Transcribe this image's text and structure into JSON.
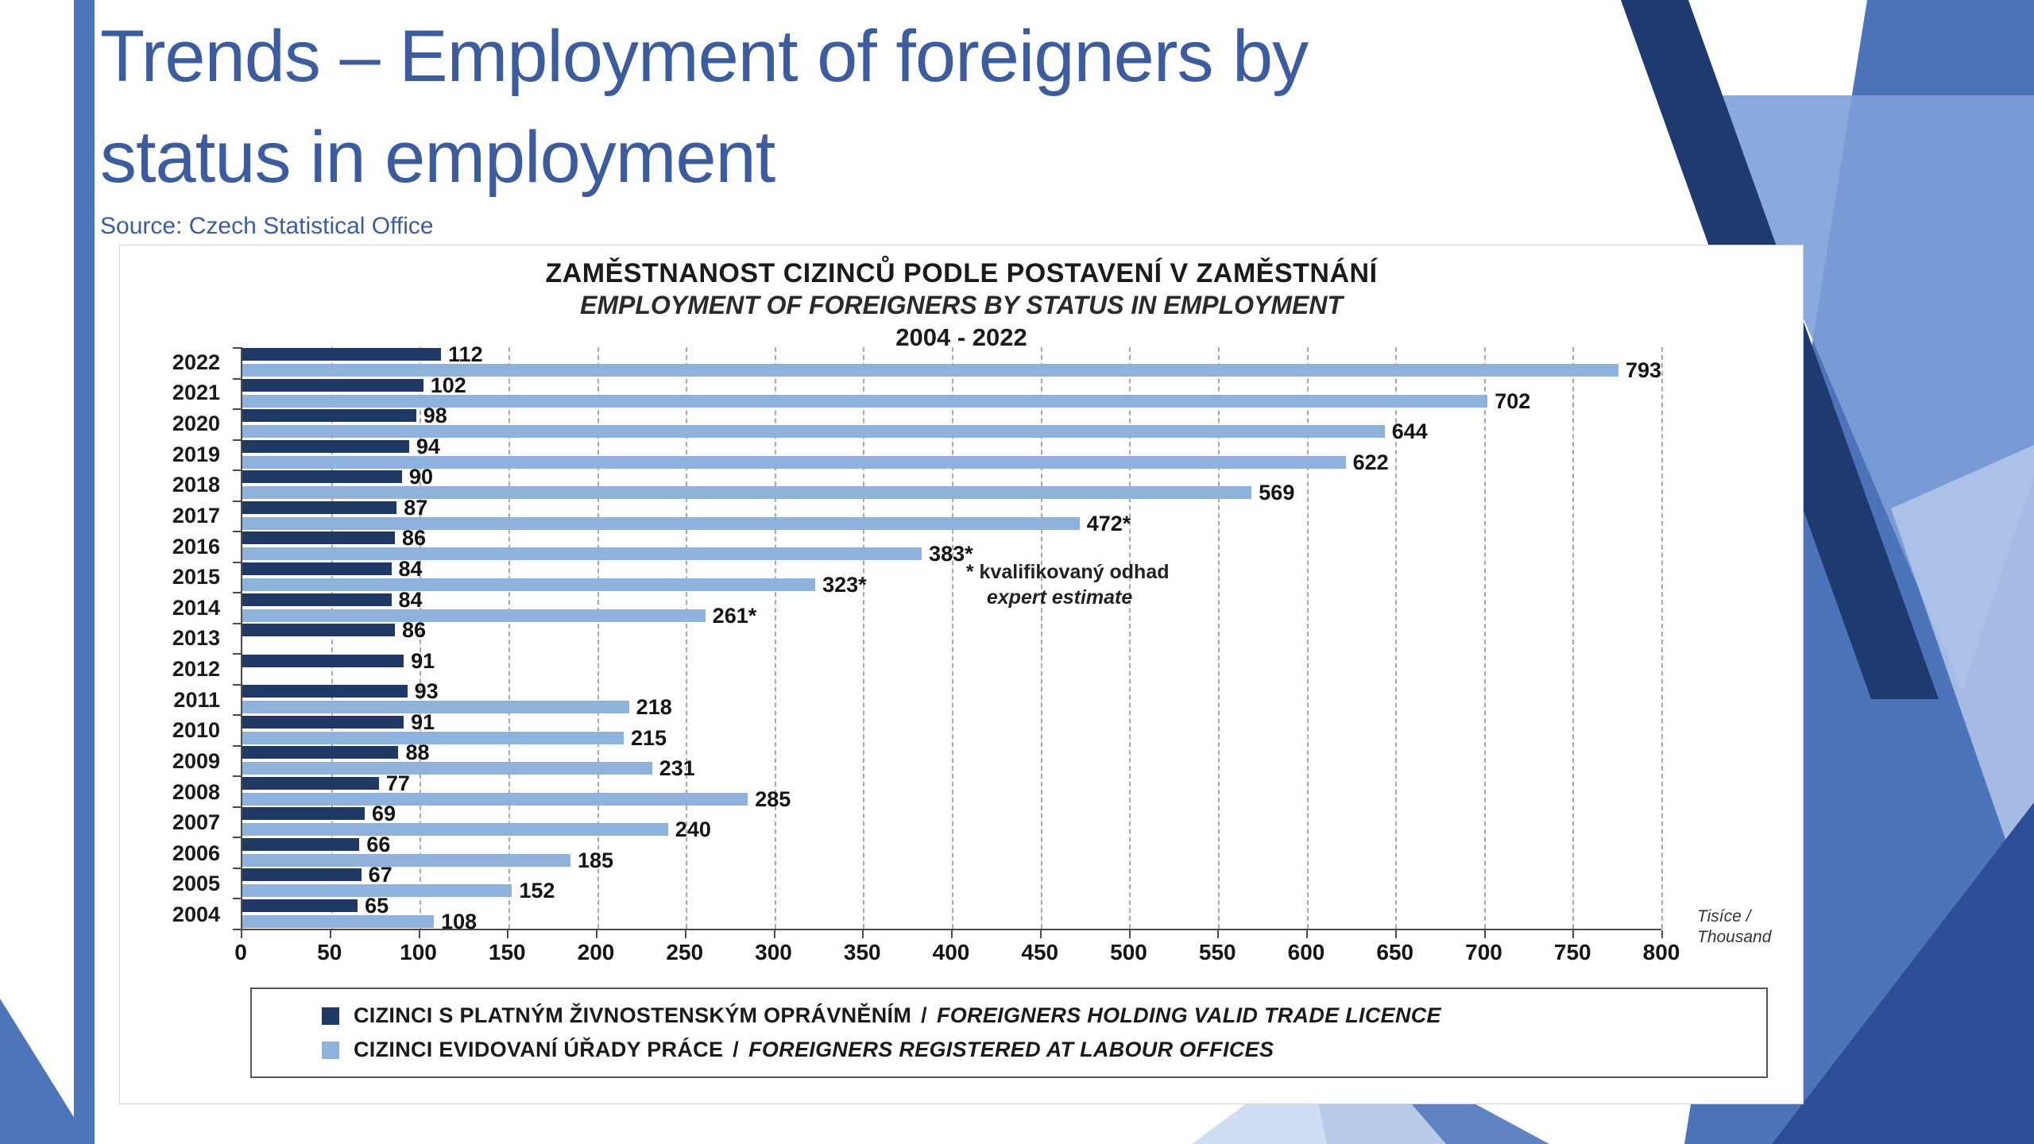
{
  "slide": {
    "title_lines": [
      "Trends – Employment of foreigners by",
      "status in employment"
    ],
    "source": "Source: Czech Statistical Office"
  },
  "colors": {
    "accent_blue": "#3D5C9E",
    "decoration_blue": "#4E74B9",
    "dark_series": "#1F3864",
    "light_series": "#8FB2DC"
  },
  "chart_data": {
    "type": "bar",
    "orientation": "horizontal",
    "titles": {
      "cs": "ZAMĚSTNANOST CIZINCŮ PODLE POSTAVENÍ V ZAMĚSTNÁNÍ",
      "en": "EMPLOYMENT OF FOREIGNERS BY STATUS IN EMPLOYMENT",
      "period": "2004 - 2022"
    },
    "axis": {
      "min": 0,
      "max": 800,
      "step": 50,
      "unit_line1": "Tisíce /",
      "unit_line2": "Thousand"
    },
    "grid": "vertical-dashed",
    "legend_position": "bottom",
    "categories": [
      "2022",
      "2021",
      "2020",
      "2019",
      "2018",
      "2017",
      "2016",
      "2015",
      "2014",
      "2013",
      "2012",
      "2011",
      "2010",
      "2009",
      "2008",
      "2007",
      "2006",
      "2005",
      "2004"
    ],
    "series": [
      {
        "name_cs": "CIZINCI S PLATNÝM ŽIVNOSTENSKÝM OPRÁVNĚNÍM",
        "name_en": "FOREIGNERS HOLDING VALID TRADE LICENCE",
        "color": "#1F3864",
        "values": [
          112,
          102,
          98,
          94,
          90,
          87,
          86,
          84,
          84,
          86,
          91,
          93,
          91,
          88,
          77,
          69,
          66,
          67,
          65
        ],
        "labels": [
          "112",
          "102",
          "98",
          "94",
          "90",
          "87",
          "86",
          "84",
          "84",
          "86",
          "91",
          "93",
          "91",
          "88",
          "77",
          "69",
          "66",
          "67",
          "65"
        ]
      },
      {
        "name_cs": "CIZINCI EVIDOVANÍ ÚŘADY PRÁCE",
        "name_en": "FOREIGNERS REGISTERED AT LABOUR OFFICES",
        "color": "#8FB2DC",
        "values": [
          793,
          702,
          644,
          622,
          569,
          472,
          383,
          323,
          261,
          null,
          null,
          218,
          215,
          231,
          285,
          240,
          185,
          152,
          108
        ],
        "labels": [
          "793",
          "702",
          "644",
          "622",
          "569",
          "472*",
          "383*",
          "323*",
          "261*",
          null,
          null,
          "218",
          "215",
          "231",
          "285",
          "240",
          "185",
          "152",
          "108"
        ]
      }
    ],
    "annotation": {
      "line1": "* kvalifikovaný odhad",
      "line2": "expert estimate"
    },
    "legend": {
      "entries": [
        {
          "label_cs": "CIZINCI S PLATNÝM ŽIVNOSTENSKÝM OPRÁVNĚNÍM",
          "separator": "/",
          "label_en": "FOREIGNERS HOLDING VALID TRADE LICENCE"
        },
        {
          "label_cs": "CIZINCI EVIDOVANÍ ÚŘADY PRÁCE",
          "separator": "/",
          "label_en": "FOREIGNERS REGISTERED AT LABOUR OFFICES"
        }
      ]
    }
  }
}
